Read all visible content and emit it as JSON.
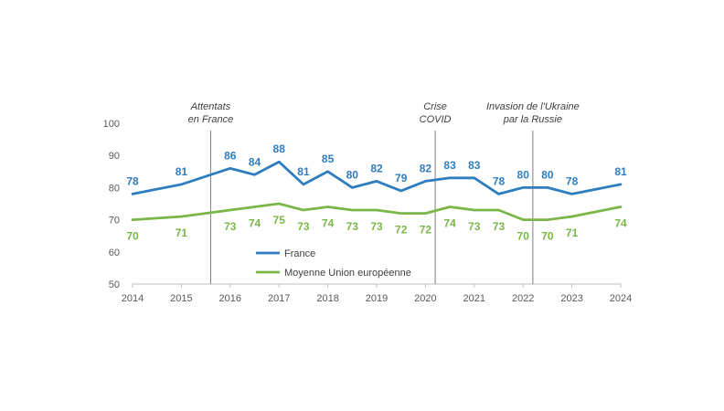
{
  "chart_data": {
    "type": "line",
    "x": [
      2014,
      2014.5,
      2015,
      2015.5,
      2016,
      2016.5,
      2017,
      2017.5,
      2018,
      2018.5,
      2019,
      2019.5,
      2020,
      2020.5,
      2021,
      2021.5,
      2022,
      2022.5,
      2023,
      2023.5,
      2024
    ],
    "x_ticks": [
      "2014",
      "2015",
      "2016",
      "2017",
      "2018",
      "2019",
      "2020",
      "2021",
      "2022",
      "2023",
      "2024"
    ],
    "y_ticks": [
      "50",
      "60",
      "70",
      "80",
      "90",
      "100"
    ],
    "ylim": [
      50,
      100
    ],
    "grid": false,
    "legend_position": "bottom-left-inside",
    "colors": {
      "france": "#2E7DC1",
      "eu": "#7AB648",
      "event_line": "#7F7F7F",
      "axis": "#BFBFBF"
    },
    "series": [
      {
        "name": "France",
        "values": [
          78,
          null,
          81,
          null,
          86,
          84,
          88,
          81,
          85,
          80,
          82,
          79,
          82,
          83,
          83,
          78,
          80,
          80,
          78,
          null,
          81
        ],
        "labels": [
          "78",
          null,
          "81",
          null,
          "86",
          "84",
          "88",
          "81",
          "85",
          "80",
          "82",
          "79",
          "82",
          "83",
          "83",
          "78",
          "80",
          "80",
          "78",
          null,
          "81"
        ]
      },
      {
        "name": "Moyenne Union européenne",
        "values": [
          70,
          null,
          71,
          null,
          73,
          74,
          75,
          73,
          74,
          73,
          73,
          72,
          72,
          74,
          73,
          73,
          70,
          70,
          71,
          null,
          74
        ],
        "labels": [
          "70",
          null,
          "71",
          null,
          "73",
          "74",
          "75",
          "73",
          "74",
          "73",
          "73",
          "72",
          "72",
          "74",
          "73",
          "73",
          "70",
          "70",
          "71",
          null,
          "74"
        ]
      }
    ],
    "annotations": [
      {
        "x": 2015.6,
        "lines": [
          "Attentats",
          "en France"
        ]
      },
      {
        "x": 2020.2,
        "lines": [
          "Crise",
          "COVID"
        ]
      },
      {
        "x": 2022.2,
        "lines": [
          "Invasion de l'Ukraine",
          "par la Russie"
        ]
      }
    ]
  }
}
